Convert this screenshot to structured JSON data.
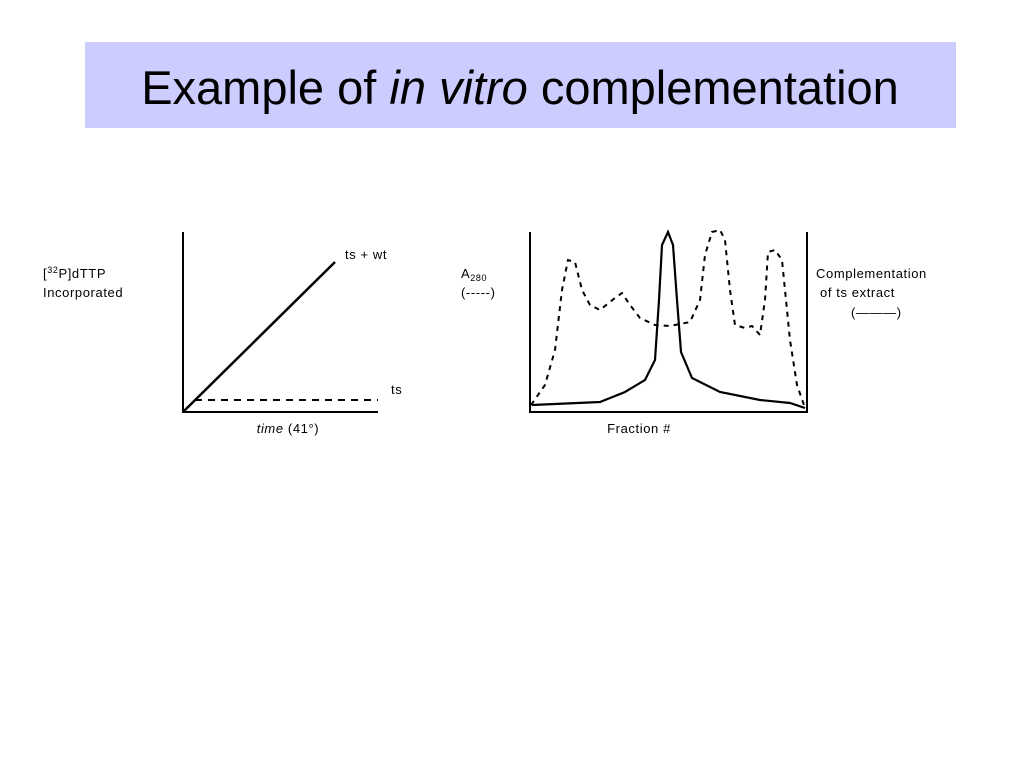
{
  "title": {
    "before": "Example of",
    "italic": "in vitro",
    "after": "complementation"
  },
  "left_diagram": {
    "ylabel_open": "[",
    "ylabel_sup": "32",
    "ylabel_rest": "P]dTTP",
    "ylabel_line2": "Incorporated",
    "line_upper": "ts + wt",
    "line_lower": "ts",
    "xlabel_italic": "time",
    "xlabel_rest": "(41°)"
  },
  "right_diagram": {
    "left_label_main": "A",
    "left_label_sub": "280",
    "left_label_key": "(-----)",
    "xlabel": "Fraction #",
    "right_label_line1": "Complementation",
    "right_label_line2": "of ts extract",
    "right_label_key": "(———)"
  }
}
